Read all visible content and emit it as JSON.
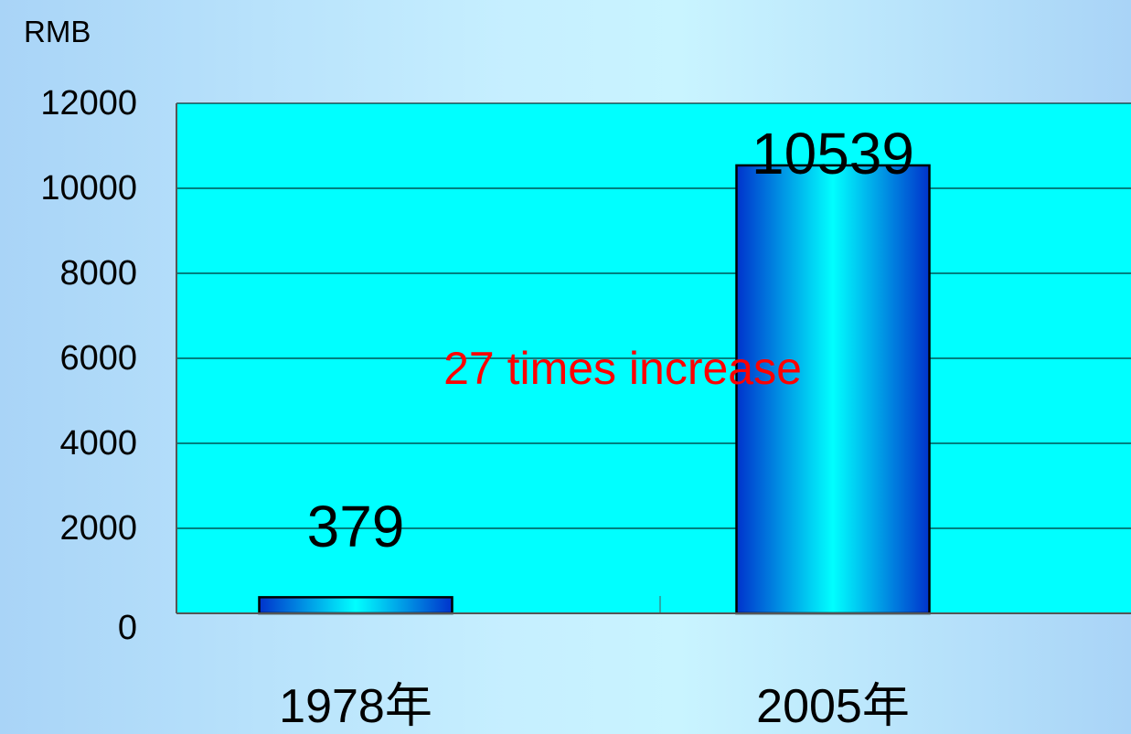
{
  "chart_data": {
    "type": "bar",
    "title": "",
    "y_unit_label": "RMB",
    "categories": [
      "1978年",
      "2005年"
    ],
    "values": [
      379,
      10539
    ],
    "data_labels": [
      "379",
      "10539"
    ],
    "ylim": [
      0,
      12000
    ],
    "y_ticks": [
      0,
      2000,
      4000,
      6000,
      8000,
      10000,
      12000
    ],
    "grid": true,
    "legend": "none",
    "annotation": "27 times increase",
    "colors": {
      "plot_background": "#00ffff",
      "bar_edge": "#0033cc",
      "bar_center": "#00ffff",
      "gridline": "#000000",
      "annotation": "#ff0000",
      "text": "#000000"
    }
  }
}
